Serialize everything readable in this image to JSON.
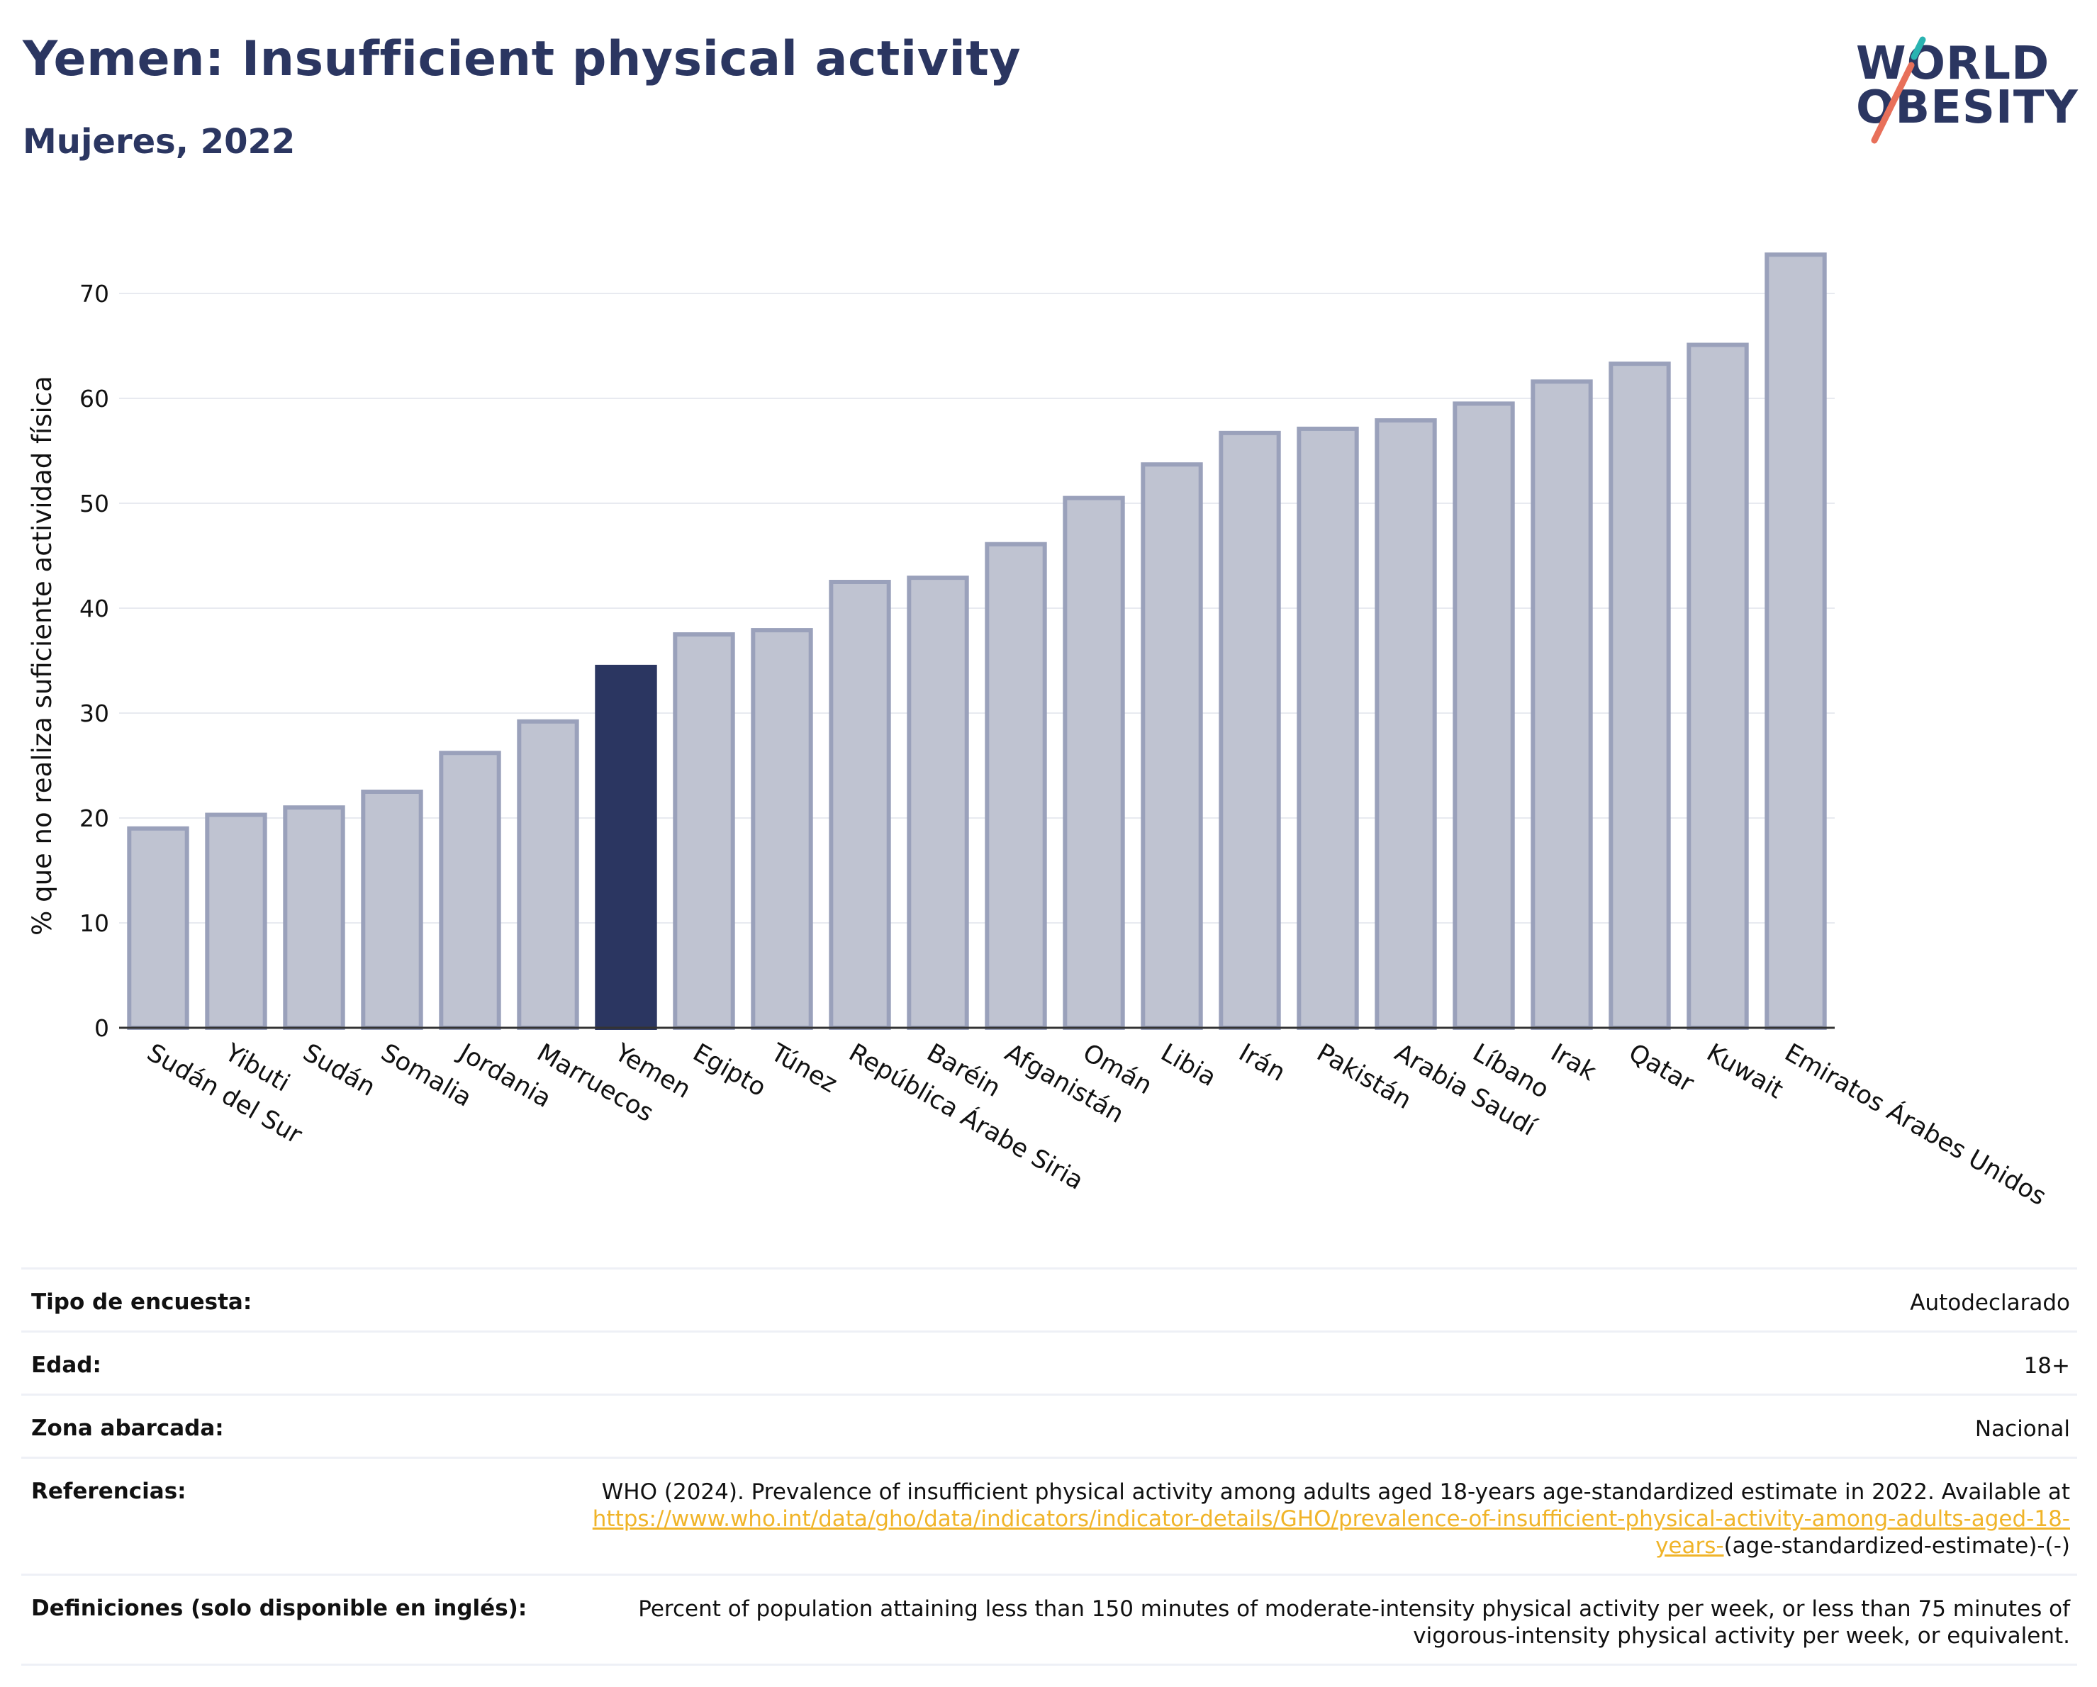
{
  "header": {
    "title": "Yemen: Insufficient physical activity",
    "subtitle": "Mujeres, 2022"
  },
  "logo": {
    "line1": "WORLD",
    "line2": "OBESITY",
    "accent_colors": [
      "#2ab3b1",
      "#e8705a"
    ]
  },
  "colors": {
    "bar": "#bfc3d1",
    "bar_border": "#9aa1bb",
    "highlight": "#2b3661",
    "axis_text": "#111111",
    "grid": "#e8eaf0"
  },
  "chart_data": {
    "type": "bar",
    "ylabel": "% que no realiza suficiente actividad física",
    "ylim": [
      0,
      75
    ],
    "yticks": [
      0,
      10,
      20,
      30,
      40,
      50,
      60,
      70
    ],
    "grid": true,
    "highlight": "Yemen",
    "categories": [
      "Sudán del Sur",
      "Yibuti",
      "Sudán",
      "Somalia",
      "Jordania",
      "Marruecos",
      "Yemen",
      "Egipto",
      "Túnez",
      "República Árabe Siria",
      "Baréin",
      "Afganistán",
      "Omán",
      "Libia",
      "Irán",
      "Pakistán",
      "Arabia Saudí",
      "Líbano",
      "Irak",
      "Qatar",
      "Kuwait",
      "Emiratos Árabes Unidos"
    ],
    "values": [
      19.0,
      20.3,
      21.0,
      22.5,
      26.2,
      29.2,
      34.4,
      37.5,
      37.9,
      42.5,
      42.9,
      46.1,
      50.5,
      53.7,
      56.7,
      57.1,
      57.9,
      59.5,
      61.6,
      63.3,
      65.1,
      73.7
    ]
  },
  "info": {
    "survey_label": "Tipo de encuesta:",
    "survey_value": "Autodeclarado",
    "age_label": "Edad:",
    "age_value": "18+",
    "area_label": "Zona abarcada:",
    "area_value": "Nacional",
    "ref_label": "Referencias:",
    "ref_text": "WHO (2024). Prevalence of insufficient physical activity among adults aged 18-years age-standardized estimate in 2022. Available at",
    "ref_link": "https://www.who.int/data/gho/data/indicators/indicator-details/GHO/prevalence-of-insufficient-physical-activity-among-adults-aged-18-years-",
    "ref_suffix": "(age-standardized-estimate)-(-)",
    "def_label": "Definiciones (solo disponible en inglés):",
    "def_value": "Percent of population attaining less than 150 minutes of moderate-intensity physical activity per week, or less than 75 minutes of vigorous-intensity physical activity per week, or equivalent."
  }
}
